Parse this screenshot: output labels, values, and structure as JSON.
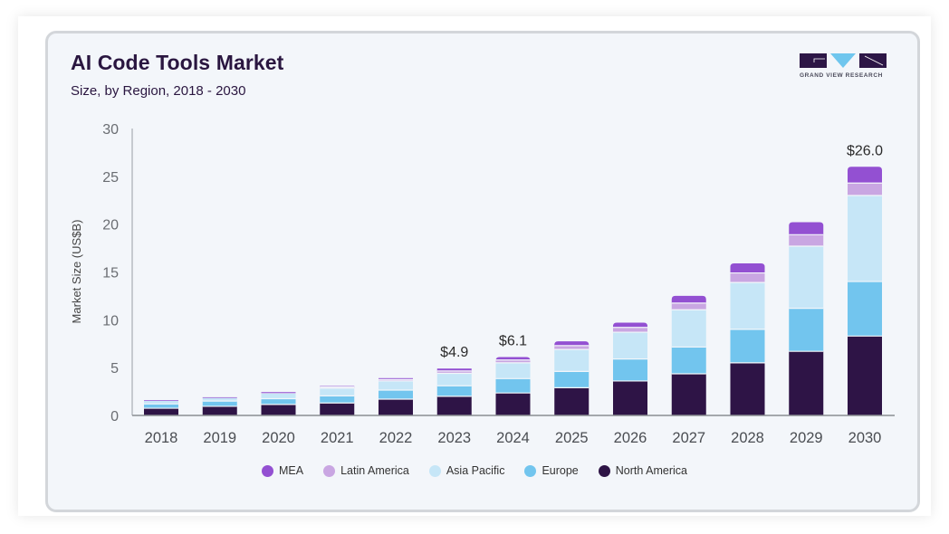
{
  "header": {
    "title": "AI Code Tools Market",
    "subtitle": "Size, by Region, 2018 - 2030"
  },
  "logo": {
    "text": "GRAND VIEW RESEARCH",
    "colors": {
      "dark": "#2d1646",
      "accent": "#6fc6ee"
    }
  },
  "chart_data": {
    "type": "bar",
    "stacked": true,
    "title": "AI Code Tools Market",
    "subtitle": "Size, by Region, 2018 - 2030",
    "xlabel": "",
    "ylabel": "Market Size (US$B)",
    "ylim": [
      0,
      30
    ],
    "yticks": [
      0,
      5,
      10,
      15,
      20,
      25,
      30
    ],
    "grid": false,
    "legend_position": "bottom",
    "categories": [
      "2018",
      "2019",
      "2020",
      "2021",
      "2022",
      "2023",
      "2024",
      "2025",
      "2026",
      "2027",
      "2028",
      "2029",
      "2030"
    ],
    "series": [
      {
        "name": "North America",
        "color": "#2e1446",
        "values": [
          0.75,
          0.95,
          1.15,
          1.3,
          1.7,
          2.0,
          2.35,
          2.9,
          3.6,
          4.35,
          5.5,
          6.7,
          8.3
        ]
      },
      {
        "name": "Europe",
        "color": "#72c5ee",
        "values": [
          0.45,
          0.55,
          0.6,
          0.75,
          0.95,
          1.1,
          1.5,
          1.7,
          2.3,
          2.8,
          3.5,
          4.5,
          5.7
        ]
      },
      {
        "name": "Asia Pacific",
        "color": "#c6e6f7",
        "values": [
          0.35,
          0.35,
          0.55,
          0.8,
          0.95,
          1.3,
          1.65,
          2.3,
          2.8,
          3.9,
          4.9,
          6.5,
          9.0
        ]
      },
      {
        "name": "Latin America",
        "color": "#c9a6e2",
        "values": [
          0.03,
          0.03,
          0.08,
          0.12,
          0.15,
          0.25,
          0.3,
          0.4,
          0.5,
          0.7,
          1.0,
          1.2,
          1.3
        ]
      },
      {
        "name": "MEA",
        "color": "#9350d2",
        "values": [
          0.02,
          0.02,
          0.07,
          0.1,
          0.15,
          0.25,
          0.3,
          0.45,
          0.5,
          0.75,
          1.0,
          1.3,
          1.7
        ]
      }
    ],
    "annotations": [
      {
        "category": "2023",
        "text": "$4.9",
        "value": 4.9
      },
      {
        "category": "2024",
        "text": "$6.1",
        "value": 6.1
      },
      {
        "category": "2030",
        "text": "$26.0",
        "value": 26.0
      }
    ],
    "legend_order": [
      "MEA",
      "Latin America",
      "Asia Pacific",
      "Europe",
      "North America"
    ]
  }
}
